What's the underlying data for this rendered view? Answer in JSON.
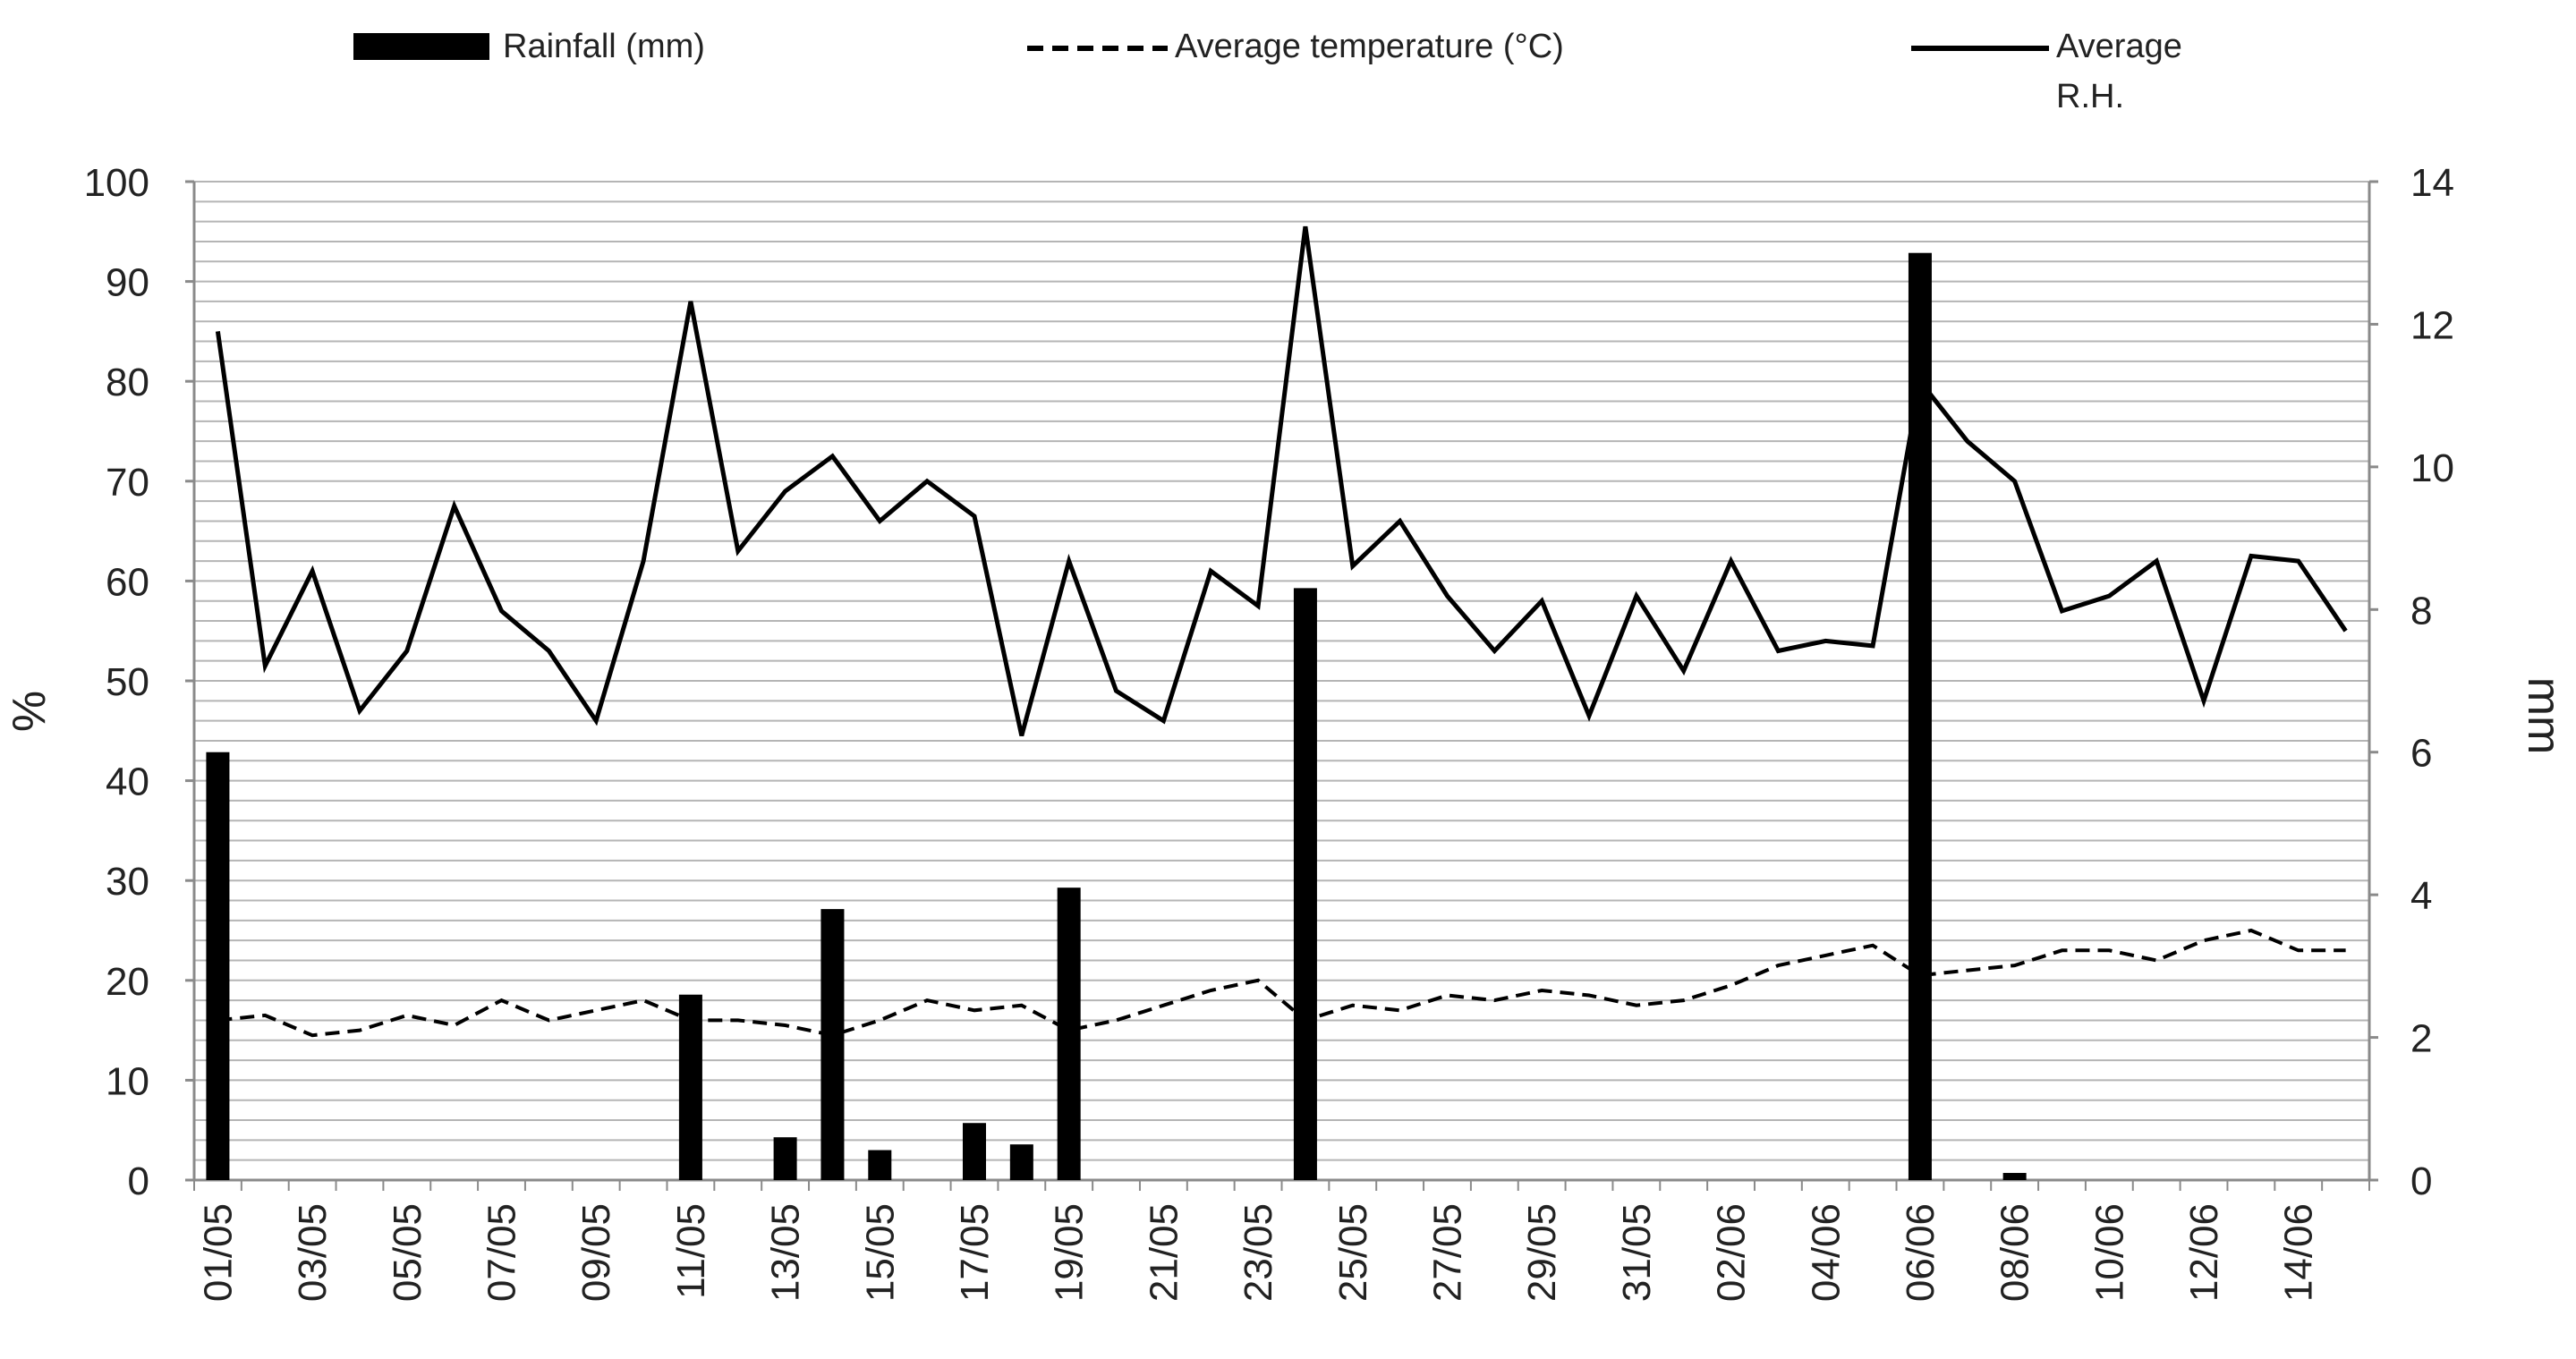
{
  "chart_data": {
    "type": "bar+line",
    "title": "",
    "legend": {
      "placement": "top",
      "entries": [
        {
          "label": "Rainfall (mm)",
          "style": "bar"
        },
        {
          "label": "Average temperature (°C)",
          "style": "dashed-line"
        },
        {
          "label": "Average R.H.",
          "style": "solid-line",
          "lines": [
            "Average",
            "R.H."
          ]
        }
      ]
    },
    "left_axis": {
      "label": "%",
      "ylim": [
        0,
        100
      ],
      "ticks": [
        "0",
        "10",
        "20",
        "30",
        "40",
        "50",
        "60",
        "70",
        "80",
        "90",
        "100"
      ]
    },
    "right_axis": {
      "label": "mm",
      "ylim": [
        0,
        14
      ],
      "ticks": [
        "0",
        "2",
        "4",
        "6",
        "8",
        "10",
        "12",
        "14"
      ]
    },
    "x_tick_labels": [
      "01/05",
      "03/05",
      "05/05",
      "07/05",
      "09/05",
      "11/05",
      "13/05",
      "15/05",
      "17/05",
      "19/05",
      "21/05",
      "23/05",
      "25/05",
      "27/05",
      "29/05",
      "31/05",
      "02/06",
      "04/06",
      "06/06",
      "08/06",
      "10/06",
      "12/06",
      "14/06"
    ],
    "dates": [
      "01/05",
      "02/05",
      "03/05",
      "04/05",
      "05/05",
      "06/05",
      "07/05",
      "08/05",
      "09/05",
      "10/05",
      "11/05",
      "12/05",
      "13/05",
      "14/05",
      "15/05",
      "16/05",
      "17/05",
      "18/05",
      "19/05",
      "20/05",
      "21/05",
      "22/05",
      "23/05",
      "24/05",
      "25/05",
      "26/05",
      "27/05",
      "28/05",
      "29/05",
      "30/05",
      "31/05",
      "01/06",
      "02/06",
      "03/06",
      "04/06",
      "05/06",
      "06/06",
      "07/06",
      "08/06",
      "09/06",
      "10/06",
      "11/06",
      "12/06",
      "13/06",
      "14/06",
      "15/06"
    ],
    "series": [
      {
        "name": "Rainfall (mm)",
        "axis": "right",
        "kind": "bar",
        "color": "#000000",
        "values": [
          6.0,
          0,
          0,
          0,
          0,
          0,
          0,
          0,
          0,
          0,
          2.6,
          0,
          0.6,
          3.8,
          0.42,
          0,
          0.8,
          0.5,
          4.1,
          0,
          0,
          0,
          0,
          8.3,
          0,
          0,
          0,
          0,
          0,
          0,
          0,
          0,
          0,
          0,
          0,
          0,
          13.0,
          0,
          0.1,
          0,
          0,
          0,
          0,
          0,
          0,
          0
        ]
      },
      {
        "name": "Average temperature (°C)",
        "axis": "left",
        "kind": "dashed-line",
        "color": "#000000",
        "values": [
          16,
          16.5,
          14.5,
          15,
          16.5,
          15.5,
          18,
          16,
          17,
          18,
          16,
          16,
          15.5,
          14.5,
          16,
          18,
          17,
          17.5,
          15,
          16,
          17.5,
          19,
          20,
          16,
          17.5,
          17,
          18.5,
          18,
          19,
          18.5,
          17.5,
          18,
          19.5,
          21.5,
          22.5,
          23.5,
          20.5,
          21,
          21.5,
          23,
          23,
          22,
          24,
          25,
          23,
          23
        ]
      },
      {
        "name": "Average R.H.",
        "axis": "left",
        "kind": "solid-line",
        "color": "#000000",
        "values": [
          85,
          51.5,
          61,
          47,
          53,
          67.5,
          57,
          53,
          46,
          62,
          88,
          63,
          69,
          72.5,
          66,
          70,
          66.5,
          44.5,
          62,
          49,
          46,
          61,
          57.5,
          95.5,
          61.5,
          66,
          58.5,
          53,
          58,
          46.5,
          58.5,
          51,
          62,
          53,
          54,
          53.5,
          80,
          74,
          70,
          57,
          58.5,
          62,
          48,
          62.5,
          62,
          55
        ]
      }
    ]
  }
}
